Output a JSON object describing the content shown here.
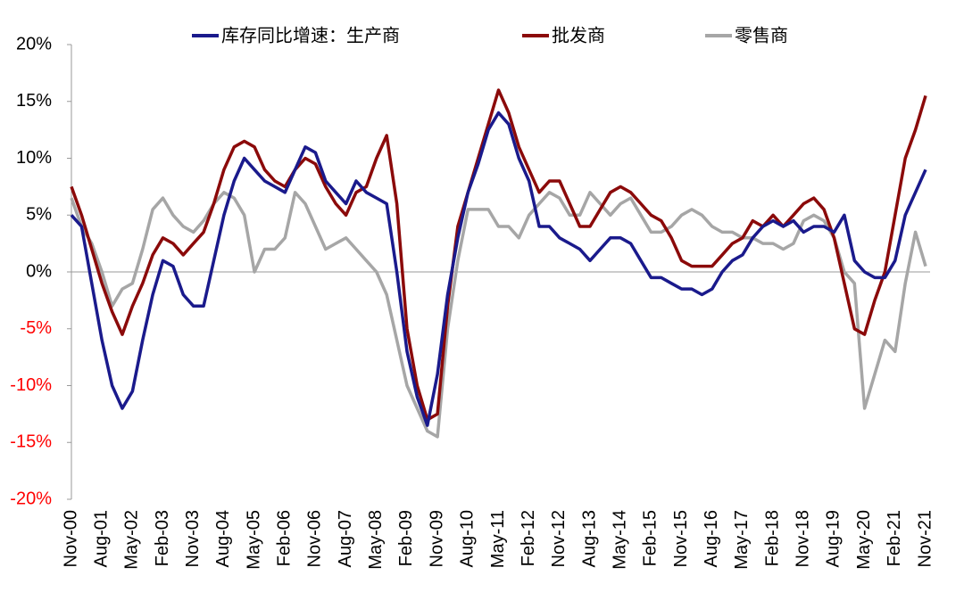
{
  "chart_data": {
    "type": "line",
    "categories": [
      "Nov-00",
      null,
      null,
      "Aug-01",
      null,
      null,
      "May-02",
      null,
      null,
      "Feb-03",
      null,
      null,
      "Nov-03",
      null,
      null,
      "Aug-04",
      null,
      null,
      "May-05",
      null,
      null,
      "Feb-06",
      null,
      null,
      "Nov-06",
      null,
      null,
      "Aug-07",
      null,
      null,
      "May-08",
      null,
      null,
      "Feb-09",
      null,
      null,
      "Nov-09",
      null,
      null,
      "Aug-10",
      null,
      null,
      "May-11",
      null,
      null,
      "Feb-12",
      null,
      null,
      "Nov-12",
      null,
      null,
      "Aug-13",
      null,
      null,
      "May-14",
      null,
      null,
      "Feb-15",
      null,
      null,
      "Nov-15",
      null,
      null,
      "Aug-16",
      null,
      null,
      "May-17",
      null,
      null,
      "Feb-18",
      null,
      null,
      "Nov-18",
      null,
      null,
      "Aug-19",
      null,
      null,
      "May-20",
      null,
      null,
      "Feb-21",
      null,
      null,
      "Nov-21"
    ],
    "series": [
      {
        "name": "库存同比增速：生产商",
        "color": "#1a1a8c",
        "values": [
          5,
          4,
          -1,
          -6,
          -10,
          -12,
          -10.5,
          -6,
          -2,
          1,
          0.5,
          -2,
          -3,
          -3,
          1,
          5,
          8,
          10,
          9,
          8,
          7.5,
          7,
          9,
          11,
          10.5,
          8,
          7,
          6,
          8,
          7,
          6.5,
          6,
          0,
          -7,
          -11,
          -13.5,
          -9,
          -2,
          3,
          7,
          9.5,
          12.5,
          14,
          13,
          10,
          8,
          4,
          4,
          3,
          2.5,
          2,
          1,
          2,
          3,
          3,
          2.5,
          1,
          -0.5,
          -0.5,
          -1,
          -1.5,
          -1.5,
          -2,
          -1.5,
          0,
          1,
          1.5,
          3,
          4,
          4.5,
          4,
          4.5,
          3.5,
          4,
          4,
          3.5,
          5,
          1,
          0,
          -0.5,
          -0.5,
          1,
          5,
          7,
          9
        ]
      },
      {
        "name": "批发商",
        "color": "#8b0a0a",
        "values": [
          7.5,
          5,
          2,
          -1,
          -3.5,
          -5.5,
          -3,
          -1,
          1.5,
          3,
          2.5,
          1.5,
          2.5,
          3.5,
          6,
          9,
          11,
          11.5,
          11,
          9,
          8,
          7.5,
          9,
          10,
          9.5,
          7.5,
          6,
          5,
          7,
          7.5,
          10,
          12,
          6,
          -5,
          -10,
          -13,
          -12.5,
          -3,
          4,
          7,
          10,
          13,
          16,
          14,
          11,
          9,
          7,
          8,
          8,
          6,
          4,
          4,
          5.5,
          7,
          7.5,
          7,
          6,
          5,
          4.5,
          3,
          1,
          0.5,
          0.5,
          0.5,
          1.5,
          2.5,
          3,
          4.5,
          4,
          5,
          4,
          5,
          6,
          6.5,
          5.5,
          3,
          -1,
          -5,
          -5.5,
          -2.5,
          0,
          5,
          10,
          12.5,
          15.5
        ]
      },
      {
        "name": "零售商",
        "color": "#a6a6a6",
        "values": [
          6.5,
          4,
          2.5,
          0,
          -3,
          -1.5,
          -1,
          2,
          5.5,
          6.5,
          5,
          4,
          3.5,
          4.5,
          6,
          7,
          6.5,
          5,
          0,
          2,
          2,
          3,
          7,
          6,
          4,
          2,
          2.5,
          3,
          2,
          1,
          0,
          -2,
          -6,
          -10,
          -12,
          -14,
          -14.5,
          -5,
          1,
          5.5,
          5.5,
          5.5,
          4,
          4,
          3,
          5,
          6,
          7,
          6.5,
          5,
          5,
          7,
          6,
          5,
          6,
          6.5,
          5,
          3.5,
          3.5,
          4,
          5,
          5.5,
          5,
          4,
          3.5,
          3.5,
          3,
          3,
          2.5,
          2.5,
          2,
          2.5,
          4.5,
          5,
          4.5,
          3,
          0,
          -1,
          -12,
          -9,
          -6,
          -7,
          -1,
          3.5,
          0.5
        ]
      }
    ],
    "ylim": [
      -20,
      20
    ],
    "yticks": [
      {
        "value": -20,
        "label": "-20%"
      },
      {
        "value": -15,
        "label": "-15%"
      },
      {
        "value": -10,
        "label": "-10%"
      },
      {
        "value": -5,
        "label": "-5%"
      },
      {
        "value": 0,
        "label": "0%"
      },
      {
        "value": 5,
        "label": "5%"
      },
      {
        "value": 10,
        "label": "10%"
      },
      {
        "value": 15,
        "label": "15%"
      },
      {
        "value": 20,
        "label": "20%"
      }
    ],
    "negative_tick_color": "#ff0000",
    "legend": "top"
  }
}
